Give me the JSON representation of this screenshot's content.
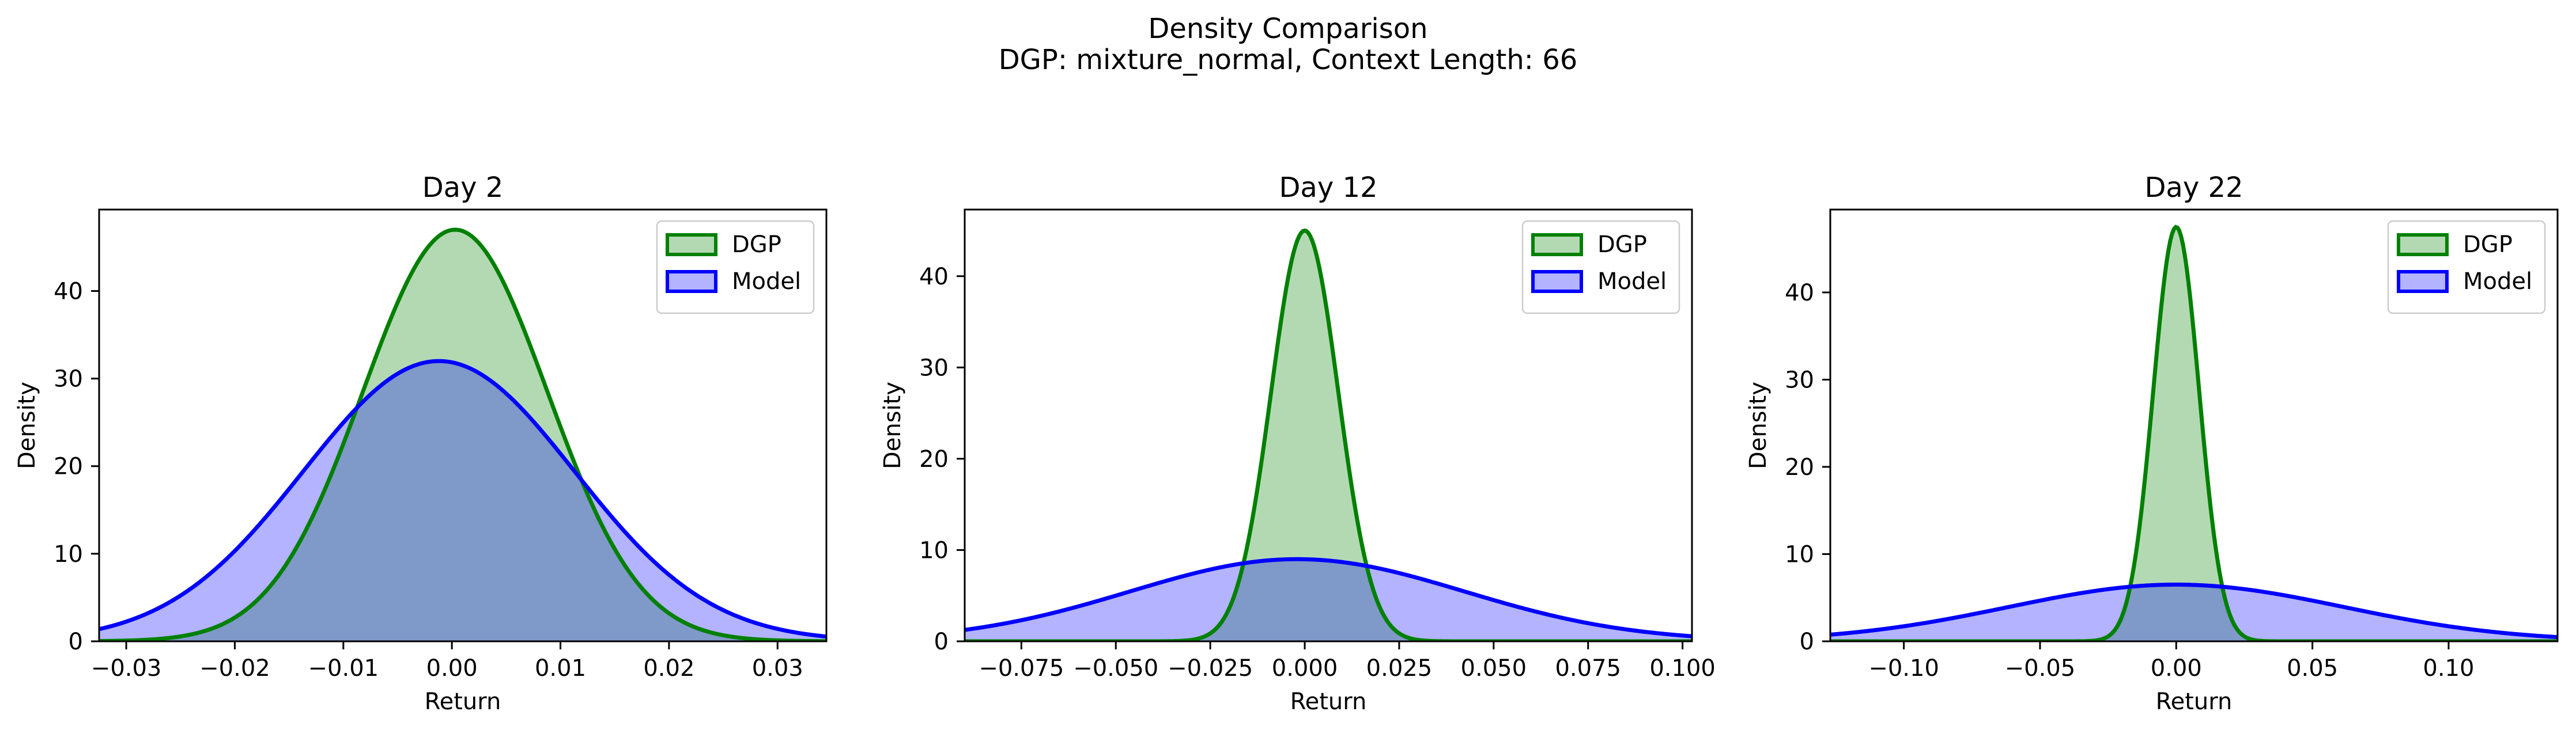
{
  "figure": {
    "title_line1": "Density Comparison",
    "title_line2": "DGP: mixture_normal, Context Length: 66"
  },
  "colors": {
    "dgp": "#008000",
    "dgp_fill": "#b3d9b3",
    "model": "#0000ff",
    "model_fill": "#b3b3ff",
    "overlap_fill": "#7f99c8"
  },
  "legend": {
    "dgp_label": "DGP",
    "model_label": "Model"
  },
  "chart_data": [
    {
      "type": "area",
      "title": "Day 2",
      "xlabel": "Return",
      "ylabel": "Density",
      "xlim": [
        -0.0325,
        0.0345
      ],
      "ylim": [
        0,
        49.3
      ],
      "xticks": [
        -0.03,
        -0.02,
        -0.01,
        0.0,
        0.01,
        0.02,
        0.03
      ],
      "xtick_labels": [
        "−0.03",
        "−0.02",
        "−0.01",
        "0.00",
        "0.01",
        "0.02",
        "0.03"
      ],
      "yticks": [
        0,
        10,
        20,
        30,
        40
      ],
      "legend_position": "top-right",
      "series": [
        {
          "name": "DGP",
          "mean": 0.0003,
          "sd": 0.0085,
          "peak_density": 47.0
        },
        {
          "name": "Model",
          "mean": -0.0012,
          "sd": 0.0125,
          "peak_density": 32.0
        }
      ]
    },
    {
      "type": "area",
      "title": "Day 12",
      "xlabel": "Return",
      "ylabel": "Density",
      "xlim": [
        -0.09,
        0.1025
      ],
      "ylim": [
        0,
        47.3
      ],
      "xticks": [
        -0.075,
        -0.05,
        -0.025,
        0.0,
        0.025,
        0.05,
        0.075,
        0.1
      ],
      "xtick_labels": [
        "−0.075",
        "−0.050",
        "−0.025",
        "0.000",
        "0.025",
        "0.050",
        "0.075",
        "0.100"
      ],
      "yticks": [
        0,
        10,
        20,
        30,
        40
      ],
      "legend_position": "top-right",
      "series": [
        {
          "name": "DGP",
          "mean": 0.0,
          "sd": 0.0089,
          "peak_density": 45.0
        },
        {
          "name": "Model",
          "mean": -0.002,
          "sd": 0.0443,
          "peak_density": 9.0
        }
      ]
    },
    {
      "type": "area",
      "title": "Day 22",
      "xlabel": "Return",
      "ylabel": "Density",
      "xlim": [
        -0.127,
        0.14
      ],
      "ylim": [
        0,
        49.5
      ],
      "xticks": [
        -0.1,
        -0.05,
        0.0,
        0.05,
        0.1
      ],
      "xtick_labels": [
        "−0.10",
        "−0.05",
        "0.00",
        "0.05",
        "0.10"
      ],
      "yticks": [
        0,
        10,
        20,
        30,
        40
      ],
      "legend_position": "top-right",
      "series": [
        {
          "name": "DGP",
          "mean": 0.0,
          "sd": 0.0084,
          "peak_density": 47.5
        },
        {
          "name": "Model",
          "mean": 0.0,
          "sd": 0.0614,
          "peak_density": 6.5
        }
      ]
    }
  ]
}
